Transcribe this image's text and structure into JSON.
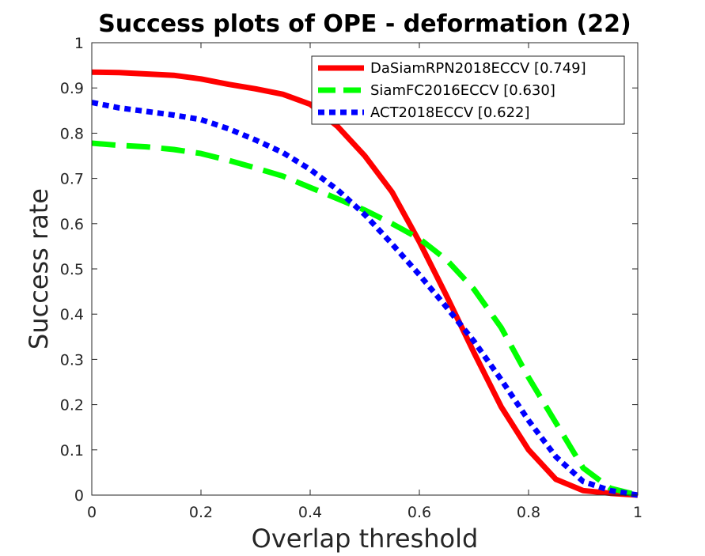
{
  "chart_data": {
    "type": "line",
    "title": "Success plots of OPE - deformation (22)",
    "xlabel": "Overlap threshold",
    "ylabel": "Success rate",
    "xlim": [
      0,
      1
    ],
    "ylim": [
      0,
      1
    ],
    "xticks": [
      "0",
      "0.2",
      "0.4",
      "0.6",
      "0.8",
      "1"
    ],
    "yticks": [
      "0",
      "0.1",
      "0.2",
      "0.3",
      "0.4",
      "0.5",
      "0.6",
      "0.7",
      "0.8",
      "0.9",
      "1"
    ],
    "grid": false,
    "legend_position": "top-right",
    "x": [
      0,
      0.05,
      0.1,
      0.15,
      0.2,
      0.25,
      0.3,
      0.35,
      0.4,
      0.45,
      0.5,
      0.55,
      0.6,
      0.65,
      0.7,
      0.75,
      0.8,
      0.85,
      0.9,
      0.95,
      1.0
    ],
    "series": [
      {
        "name": "DaSiamRPN2018ECCV [0.749]",
        "color": "#ff0000",
        "dash": "solid",
        "values": [
          0.935,
          0.934,
          0.931,
          0.928,
          0.92,
          0.908,
          0.898,
          0.886,
          0.864,
          0.815,
          0.75,
          0.67,
          0.56,
          0.44,
          0.315,
          0.195,
          0.1,
          0.035,
          0.01,
          0.004,
          0.0
        ]
      },
      {
        "name": "SiamFC2016ECCV [0.630]",
        "color": "#00ff00",
        "dash": "dashed",
        "values": [
          0.778,
          0.773,
          0.77,
          0.764,
          0.755,
          0.74,
          0.723,
          0.705,
          0.68,
          0.655,
          0.63,
          0.6,
          0.567,
          0.52,
          0.455,
          0.37,
          0.26,
          0.16,
          0.06,
          0.015,
          0.0
        ]
      },
      {
        "name": "ACT2018ECCV [0.622]",
        "color": "#0000ff",
        "dash": "dotted",
        "values": [
          0.868,
          0.856,
          0.848,
          0.84,
          0.83,
          0.81,
          0.785,
          0.757,
          0.72,
          0.675,
          0.62,
          0.555,
          0.487,
          0.415,
          0.34,
          0.255,
          0.165,
          0.085,
          0.03,
          0.01,
          0.0
        ]
      }
    ]
  }
}
